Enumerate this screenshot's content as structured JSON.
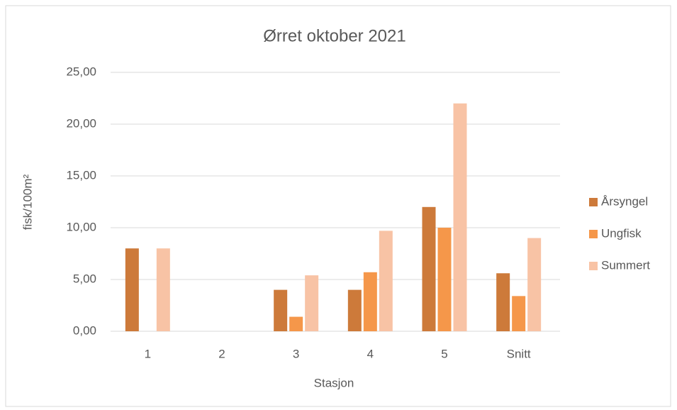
{
  "chart_data": {
    "type": "bar",
    "title": "Ørret oktober 2021",
    "x_label": "Stasjon",
    "y_label": "fisk/100m²",
    "categories": [
      "1",
      "2",
      "3",
      "4",
      "5",
      "Snitt"
    ],
    "series": [
      {
        "name": "Årsyngel",
        "color": "#cd7a3a",
        "values": [
          8.0,
          0,
          4.0,
          4.0,
          12.0,
          5.6
        ]
      },
      {
        "name": "Ungfisk",
        "color": "#f5974a",
        "values": [
          0,
          0,
          1.4,
          5.7,
          10.0,
          3.4
        ]
      },
      {
        "name": "Summert",
        "color": "#f8c3a5",
        "values": [
          8.0,
          0,
          5.4,
          9.7,
          22.0,
          9.0
        ]
      }
    ],
    "ylim": [
      0,
      25
    ],
    "yticks": [
      {
        "value": 0,
        "label": "0,00"
      },
      {
        "value": 5,
        "label": "5,00"
      },
      {
        "value": 10,
        "label": "10,00"
      },
      {
        "value": 15,
        "label": "15,00"
      },
      {
        "value": 20,
        "label": "20,00"
      },
      {
        "value": 25,
        "label": "25,00"
      }
    ],
    "grid": true,
    "legend": "right"
  }
}
